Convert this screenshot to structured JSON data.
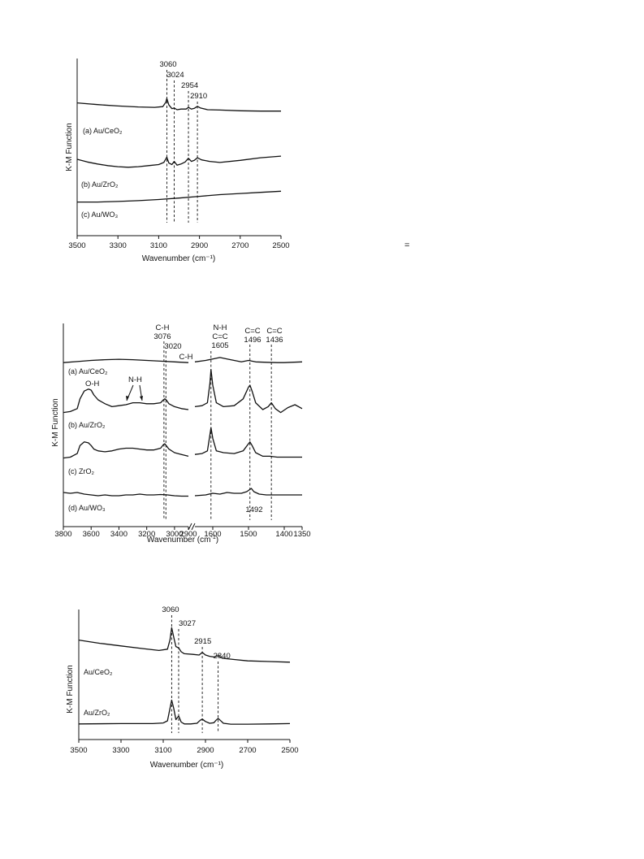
{
  "stray_mark": "=",
  "chart_data": [
    {
      "id": "top",
      "type": "line",
      "xlabel": "Wavenumber (cm⁻¹)",
      "ylabel": "K-M Function",
      "xlim": [
        3500,
        2500
      ],
      "xticks": [
        "3500",
        "3300",
        "3100",
        "2900",
        "2700",
        "2500"
      ],
      "peak_markers": [
        {
          "x": 3060,
          "label": "3060"
        },
        {
          "x": 3024,
          "label": "3024"
        },
        {
          "x": 2954,
          "label": "2954"
        },
        {
          "x": 2910,
          "label": "2910"
        }
      ],
      "series": [
        {
          "name": "(a) Au/CeO₂",
          "x": [
            3500,
            3400,
            3300,
            3200,
            3120,
            3080,
            3065,
            3060,
            3050,
            3035,
            3024,
            3010,
            2990,
            2965,
            2954,
            2940,
            2925,
            2910,
            2895,
            2860,
            2800,
            2700,
            2600,
            2500
          ],
          "y": [
            7.0,
            6.5,
            6.1,
            5.8,
            5.7,
            5.9,
            7.2,
            8.3,
            6.4,
            5.3,
            5.5,
            5.0,
            5.2,
            5.2,
            5.7,
            5.2,
            5.4,
            6.0,
            5.5,
            5.0,
            4.9,
            4.7,
            4.6,
            4.6
          ]
        },
        {
          "name": "(b) Au/ZrO₂",
          "x": [
            3500,
            3450,
            3400,
            3350,
            3300,
            3250,
            3200,
            3150,
            3100,
            3075,
            3060,
            3050,
            3035,
            3024,
            3010,
            2990,
            2970,
            2954,
            2940,
            2925,
            2910,
            2890,
            2850,
            2800,
            2700,
            2600,
            2500
          ],
          "y": [
            4.0,
            3.5,
            3.1,
            2.8,
            2.6,
            2.5,
            2.6,
            2.8,
            3.0,
            3.4,
            4.4,
            3.3,
            3.0,
            3.6,
            2.9,
            3.1,
            3.5,
            4.2,
            3.6,
            3.8,
            4.3,
            3.9,
            3.6,
            3.4,
            3.8,
            4.3,
            4.6
          ]
        },
        {
          "name": "(c) Au/WO₃",
          "x": [
            3500,
            3400,
            3300,
            3200,
            3100,
            3000,
            2900,
            2800,
            2700,
            2600,
            2500
          ],
          "y": [
            0.6,
            0.6,
            0.65,
            0.72,
            0.82,
            0.95,
            1.1,
            1.25,
            1.35,
            1.45,
            1.55
          ]
        }
      ]
    },
    {
      "id": "middle",
      "type": "line",
      "xlabel": "Wavenumber",
      "ylabel": "K-M Function",
      "xticks": [
        "3800",
        "3600",
        "3400",
        "3200",
        "3000",
        "2900",
        "1600",
        "1500",
        "1400",
        "1350"
      ],
      "annotations": [
        {
          "lines": [
            "C-H",
            "3076"
          ]
        },
        {
          "lines": [
            "3020"
          ]
        },
        {
          "lines": [
            "C-H"
          ]
        },
        {
          "lines": [
            "N-H",
            "C=C",
            "1605"
          ]
        },
        {
          "lines": [
            "C=C",
            "1496"
          ]
        },
        {
          "lines": [
            "C=C",
            "1436"
          ]
        },
        {
          "lines": [
            "O-H"
          ]
        },
        {
          "lines": [
            "N-H"
          ]
        },
        {
          "lines": [
            "1492"
          ]
        }
      ],
      "peak_markers": [
        3076,
        3062,
        1605,
        1496,
        1436
      ],
      "series": [
        {
          "name": "(a) Au/CeO₂",
          "left": {
            "x": [
              3800,
              3700,
              3600,
              3500,
              3400,
              3300,
              3200,
              3100,
              3000,
              2900
            ],
            "y": [
              0.2,
              0.35,
              0.5,
              0.6,
              0.65,
              0.6,
              0.5,
              0.4,
              0.3,
              0.2
            ]
          },
          "right": {
            "x": [
              1650,
              1620,
              1600,
              1580,
              1560,
              1540,
              1520,
              1500,
              1480,
              1450,
              1420,
              1400,
              1380,
              1350
            ],
            "y": [
              0.3,
              0.5,
              0.7,
              0.9,
              0.7,
              0.5,
              0.3,
              0.5,
              0.3,
              0.25,
              0.2,
              0.2,
              0.25,
              0.3
            ]
          }
        },
        {
          "name": "(b) Au/ZrO₂",
          "left": {
            "x": [
              3800,
              3750,
              3700,
              3680,
              3650,
              3620,
              3600,
              3580,
              3550,
              3500,
              3450,
              3400,
              3350,
              3300,
              3250,
              3200,
              3150,
              3100,
              3080,
              3070,
              3060,
              3040,
              3000,
              2950,
              2900
            ],
            "y": [
              0.2,
              0.3,
              0.6,
              1.6,
              2.4,
              2.6,
              2.5,
              2.0,
              1.5,
              1.1,
              0.8,
              0.9,
              1.0,
              1.2,
              1.2,
              1.1,
              1.1,
              1.2,
              1.5,
              1.6,
              1.5,
              1.1,
              0.8,
              0.6,
              0.5
            ]
          },
          "right": {
            "x": [
              1650,
              1630,
              1615,
              1608,
              1605,
              1600,
              1590,
              1570,
              1540,
              1515,
              1500,
              1496,
              1490,
              1480,
              1460,
              1445,
              1436,
              1425,
              1410,
              1390,
              1370,
              1350
            ],
            "y": [
              0.8,
              0.9,
              1.2,
              3.2,
              4.6,
              3.0,
              1.2,
              0.8,
              0.9,
              1.6,
              2.8,
              3.0,
              2.4,
              1.2,
              0.5,
              0.8,
              1.2,
              0.6,
              0.2,
              0.7,
              1.0,
              0.6
            ]
          }
        },
        {
          "name": "(c) ZrO₂",
          "left": {
            "x": [
              3800,
              3750,
              3700,
              3680,
              3650,
              3620,
              3600,
              3580,
              3550,
              3500,
              3450,
              3400,
              3350,
              3300,
              3250,
              3200,
              3150,
              3100,
              3080,
              3070,
              3060,
              3040,
              3000,
              2950,
              2900
            ],
            "y": [
              0.4,
              0.5,
              0.9,
              1.8,
              2.2,
              2.1,
              1.8,
              1.4,
              1.2,
              1.1,
              1.2,
              1.4,
              1.5,
              1.5,
              1.4,
              1.3,
              1.3,
              1.5,
              1.9,
              2.0,
              1.8,
              1.4,
              1.0,
              0.8,
              0.6
            ]
          },
          "right": {
            "x": [
              1650,
              1630,
              1615,
              1608,
              1605,
              1600,
              1590,
              1570,
              1540,
              1515,
              1500,
              1496,
              1490,
              1480,
              1460,
              1440,
              1420,
              1400,
              1380,
              1350
            ],
            "y": [
              0.8,
              0.9,
              1.2,
              3.0,
              3.8,
              2.6,
              1.2,
              1.0,
              0.9,
              1.2,
              2.0,
              2.2,
              1.8,
              1.0,
              0.6,
              0.6,
              0.5,
              0.5,
              0.5,
              0.5
            ]
          }
        },
        {
          "name": "(d) Au/WO₃",
          "left": {
            "x": [
              3800,
              3750,
              3700,
              3650,
              3600,
              3550,
              3500,
              3450,
              3400,
              3350,
              3300,
              3250,
              3200,
              3150,
              3100,
              3050,
              3000,
              2950,
              2900
            ],
            "y": [
              0.6,
              0.5,
              0.6,
              0.4,
              0.3,
              0.2,
              0.3,
              0.2,
              0.2,
              0.3,
              0.3,
              0.4,
              0.3,
              0.3,
              0.35,
              0.3,
              0.2,
              0.15,
              0.15
            ]
          },
          "right": {
            "x": [
              1650,
              1620,
              1600,
              1580,
              1560,
              1540,
              1520,
              1505,
              1492,
              1485,
              1470,
              1450,
              1420,
              1400,
              1380,
              1350
            ],
            "y": [
              0.2,
              0.3,
              0.5,
              0.4,
              0.6,
              0.5,
              0.5,
              0.7,
              1.1,
              0.7,
              0.4,
              0.3,
              0.3,
              0.3,
              0.3,
              0.3
            ]
          }
        }
      ]
    },
    {
      "id": "bottom",
      "type": "line",
      "xlabel": "Wavenumber (cm⁻¹)",
      "ylabel": "K-M Function",
      "xlim": [
        3500,
        2500
      ],
      "xticks": [
        "3500",
        "3300",
        "3100",
        "2900",
        "2700",
        "2500"
      ],
      "peak_markers": [
        {
          "x": 3060,
          "label": "3060"
        },
        {
          "x": 3027,
          "label": "3027"
        },
        {
          "x": 2915,
          "label": "2915"
        },
        {
          "x": 2840,
          "label": "2840"
        }
      ],
      "series": [
        {
          "name": "Au/CeO₂",
          "x": [
            3500,
            3400,
            3300,
            3200,
            3120,
            3080,
            3068,
            3060,
            3050,
            3040,
            3027,
            3015,
            3000,
            2960,
            2930,
            2915,
            2900,
            2880,
            2860,
            2840,
            2820,
            2760,
            2700,
            2600,
            2500
          ],
          "y": [
            6.8,
            6.3,
            5.9,
            5.5,
            5.2,
            5.4,
            6.8,
            8.7,
            7.2,
            5.8,
            5.6,
            5.0,
            4.7,
            4.6,
            4.5,
            4.9,
            4.5,
            4.3,
            4.2,
            4.4,
            4.0,
            3.8,
            3.6,
            3.5,
            3.4
          ]
        },
        {
          "name": "Au/ZrO₂",
          "x": [
            3500,
            3300,
            3150,
            3100,
            3080,
            3070,
            3060,
            3050,
            3040,
            3027,
            3015,
            3000,
            2970,
            2940,
            2925,
            2915,
            2900,
            2880,
            2860,
            2850,
            2840,
            2830,
            2815,
            2780,
            2700,
            2600,
            2500
          ],
          "y": [
            0.3,
            0.35,
            0.35,
            0.45,
            0.8,
            2.5,
            4.2,
            2.8,
            1.0,
            1.6,
            0.6,
            0.3,
            0.3,
            0.4,
            0.9,
            1.1,
            0.7,
            0.4,
            0.5,
            0.9,
            1.2,
            0.9,
            0.4,
            0.25,
            0.25,
            0.3,
            0.35
          ]
        }
      ]
    }
  ]
}
